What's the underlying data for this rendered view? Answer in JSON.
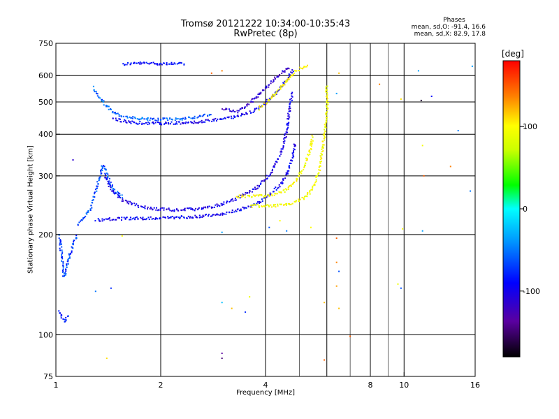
{
  "header": {
    "title_line1": "Tromsø 20121222 10:34:00-10:35:43",
    "title_line2": "RwPretec (8p)"
  },
  "stats": {
    "heading": "Phases",
    "o_mode": "mean, sd,O: -91.4, 16.6",
    "x_mode": "mean, sd,X:  82.9, 17.8"
  },
  "colorbar": {
    "unit": "[deg]",
    "ticks": [
      100,
      0,
      -100
    ],
    "tick_labels": [
      "100",
      "0",
      "-100"
    ],
    "range": [
      -180,
      180
    ]
  },
  "chart_data": {
    "type": "scatter",
    "title": "Tromsø 20121222 10:34:00-10:35:43",
    "subtitle": "RwPretec (8p)",
    "xlabel": "Frequency [MHz]",
    "ylabel": "Stationary phase Virtual Height [km]",
    "xscale": "log",
    "yscale": "log",
    "xlim": [
      1,
      16
    ],
    "ylim": [
      75,
      750
    ],
    "xticks": [
      1,
      2,
      4,
      8,
      10,
      16
    ],
    "xtick_labels": [
      "1",
      "2",
      "4",
      "8",
      "10",
      "16"
    ],
    "xgrid": [
      2,
      4,
      6,
      8,
      10
    ],
    "xminor": [
      5,
      7,
      9
    ],
    "yticks": [
      75,
      100,
      200,
      300,
      400,
      500,
      600,
      750
    ],
    "ytick_labels": [
      "75",
      "100",
      "200",
      "300",
      "400",
      "500",
      "600",
      "750"
    ],
    "ygrid": [
      100,
      200,
      300,
      400,
      500,
      600
    ],
    "grid": true,
    "color_variable": "phase [deg]",
    "traces": [
      {
        "phase": -100,
        "points": [
          [
            1.55,
            652
          ],
          [
            1.62,
            655
          ],
          [
            1.7,
            656
          ],
          [
            1.8,
            656
          ],
          [
            1.9,
            656
          ],
          [
            2.0,
            655
          ],
          [
            2.1,
            655
          ],
          [
            2.2,
            654
          ],
          [
            2.35,
            652
          ]
        ]
      },
      {
        "phase": -75,
        "points": [
          [
            1.28,
            555
          ],
          [
            1.3,
            530
          ],
          [
            1.35,
            505
          ],
          [
            1.4,
            485
          ],
          [
            1.45,
            470
          ],
          [
            1.5,
            460
          ],
          [
            1.6,
            452
          ],
          [
            1.7,
            448
          ],
          [
            1.8,
            446
          ],
          [
            2.0,
            445
          ],
          [
            2.2,
            446
          ],
          [
            2.4,
            450
          ],
          [
            2.6,
            455
          ],
          [
            2.8,
            462
          ]
        ]
      },
      {
        "phase": -105,
        "points": [
          [
            1.45,
            448
          ],
          [
            1.55,
            440
          ],
          [
            1.7,
            435
          ],
          [
            1.9,
            433
          ],
          [
            2.1,
            433
          ],
          [
            2.4,
            435
          ],
          [
            2.7,
            440
          ],
          [
            3.0,
            447
          ],
          [
            3.3,
            455
          ],
          [
            3.6,
            468
          ],
          [
            3.9,
            490
          ],
          [
            4.2,
            525
          ],
          [
            4.4,
            555
          ],
          [
            4.6,
            590
          ],
          [
            4.8,
            630
          ]
        ]
      },
      {
        "phase": -120,
        "points": [
          [
            3.0,
            480
          ],
          [
            3.3,
            470
          ],
          [
            3.6,
            500
          ],
          [
            3.8,
            525
          ],
          [
            4.0,
            555
          ],
          [
            4.2,
            585
          ],
          [
            4.5,
            620
          ],
          [
            4.7,
            640
          ]
        ]
      },
      {
        "phase": 100,
        "points": [
          [
            3.8,
            480
          ],
          [
            4.1,
            510
          ],
          [
            4.3,
            540
          ],
          [
            4.5,
            570
          ],
          [
            4.7,
            600
          ],
          [
            4.9,
            625
          ],
          [
            5.1,
            640
          ],
          [
            5.3,
            645
          ]
        ]
      },
      {
        "phase": -110,
        "points": [
          [
            1.38,
            300
          ],
          [
            1.45,
            270
          ],
          [
            1.55,
            255
          ],
          [
            1.7,
            245
          ],
          [
            1.9,
            240
          ],
          [
            2.2,
            238
          ],
          [
            2.6,
            240
          ],
          [
            3.0,
            248
          ],
          [
            3.4,
            262
          ],
          [
            3.8,
            280
          ],
          [
            4.1,
            305
          ],
          [
            4.35,
            340
          ],
          [
            4.5,
            380
          ],
          [
            4.6,
            420
          ],
          [
            4.65,
            460
          ],
          [
            4.7,
            500
          ],
          [
            4.75,
            540
          ]
        ]
      },
      {
        "phase": -105,
        "points": [
          [
            1.3,
            222
          ],
          [
            1.5,
            224
          ],
          [
            1.8,
            225
          ],
          [
            2.2,
            226
          ],
          [
            2.6,
            228
          ],
          [
            3.0,
            232
          ],
          [
            3.4,
            240
          ],
          [
            3.8,
            250
          ],
          [
            4.1,
            265
          ],
          [
            4.4,
            285
          ],
          [
            4.6,
            310
          ],
          [
            4.75,
            340
          ],
          [
            4.85,
            380
          ]
        ]
      },
      {
        "phase": -80,
        "points": [
          [
            1.15,
            215
          ],
          [
            1.2,
            225
          ],
          [
            1.25,
            240
          ],
          [
            1.3,
            275
          ],
          [
            1.33,
            300
          ],
          [
            1.36,
            325
          ],
          [
            1.4,
            300
          ],
          [
            1.45,
            275
          ],
          [
            1.55,
            260
          ]
        ]
      },
      {
        "phase": 95,
        "points": [
          [
            3.3,
            262
          ],
          [
            3.6,
            262
          ],
          [
            3.9,
            262
          ],
          [
            4.2,
            265
          ],
          [
            4.5,
            272
          ],
          [
            4.8,
            285
          ],
          [
            5.0,
            305
          ],
          [
            5.2,
            330
          ],
          [
            5.35,
            360
          ],
          [
            5.45,
            400
          ]
        ]
      },
      {
        "phase": 95,
        "points": [
          [
            3.6,
            245
          ],
          [
            4.0,
            245
          ],
          [
            4.4,
            246
          ],
          [
            4.8,
            250
          ],
          [
            5.1,
            258
          ],
          [
            5.35,
            270
          ],
          [
            5.55,
            290
          ],
          [
            5.7,
            320
          ],
          [
            5.8,
            360
          ],
          [
            5.88,
            400
          ],
          [
            5.95,
            450
          ],
          [
            6.0,
            500
          ],
          [
            5.95,
            560
          ]
        ]
      },
      {
        "phase": -85,
        "points": [
          [
            1.02,
            200
          ],
          [
            1.03,
            180
          ],
          [
            1.04,
            165
          ],
          [
            1.05,
            150
          ],
          [
            1.07,
            160
          ],
          [
            1.09,
            175
          ],
          [
            1.12,
            190
          ],
          [
            1.15,
            200
          ]
        ]
      },
      {
        "phase": -95,
        "points": [
          [
            1.02,
            118
          ],
          [
            1.04,
            112
          ],
          [
            1.06,
            110
          ],
          [
            1.08,
            115
          ]
        ]
      }
    ],
    "scatter_points": [
      {
        "x": 3.6,
        "y": 130,
        "phase": 90
      },
      {
        "x": 3.0,
        "y": 125,
        "phase": -40
      },
      {
        "x": 3.2,
        "y": 120,
        "phase": 120
      },
      {
        "x": 3.5,
        "y": 117,
        "phase": -90
      },
      {
        "x": 3.0,
        "y": 88,
        "phase": -140
      },
      {
        "x": 3.0,
        "y": 85,
        "phase": -150
      },
      {
        "x": 1.4,
        "y": 85,
        "phase": 110
      },
      {
        "x": 5.9,
        "y": 84,
        "phase": 150
      },
      {
        "x": 6.4,
        "y": 195,
        "phase": 150
      },
      {
        "x": 6.4,
        "y": 165,
        "phase": 140
      },
      {
        "x": 6.5,
        "y": 155,
        "phase": -80
      },
      {
        "x": 6.4,
        "y": 140,
        "phase": 130
      },
      {
        "x": 6.5,
        "y": 120,
        "phase": 120
      },
      {
        "x": 7.0,
        "y": 99,
        "phase": 150
      },
      {
        "x": 6.5,
        "y": 610,
        "phase": 120
      },
      {
        "x": 6.4,
        "y": 530,
        "phase": -60
      },
      {
        "x": 8.5,
        "y": 565,
        "phase": 140
      },
      {
        "x": 9.8,
        "y": 510,
        "phase": 110
      },
      {
        "x": 11.2,
        "y": 505,
        "phase": -170
      },
      {
        "x": 12.0,
        "y": 520,
        "phase": -100
      },
      {
        "x": 11.0,
        "y": 620,
        "phase": -60
      },
      {
        "x": 14.3,
        "y": 410,
        "phase": -70
      },
      {
        "x": 11.3,
        "y": 370,
        "phase": 95
      },
      {
        "x": 13.6,
        "y": 320,
        "phase": 140
      },
      {
        "x": 11.4,
        "y": 300,
        "phase": 150
      },
      {
        "x": 15.5,
        "y": 270,
        "phase": -70
      },
      {
        "x": 15.7,
        "y": 640,
        "phase": -60
      },
      {
        "x": 11.3,
        "y": 205,
        "phase": -60
      },
      {
        "x": 9.9,
        "y": 208,
        "phase": 95
      },
      {
        "x": 9.8,
        "y": 138,
        "phase": -80
      },
      {
        "x": 9.6,
        "y": 142,
        "phase": 90
      },
      {
        "x": 1.44,
        "y": 138,
        "phase": -90
      },
      {
        "x": 1.3,
        "y": 135,
        "phase": -70
      },
      {
        "x": 1.55,
        "y": 198,
        "phase": 100
      },
      {
        "x": 1.12,
        "y": 335,
        "phase": -120
      },
      {
        "x": 2.8,
        "y": 610,
        "phase": 150
      },
      {
        "x": 3.0,
        "y": 620,
        "phase": 140
      },
      {
        "x": 4.1,
        "y": 210,
        "phase": -80
      },
      {
        "x": 4.6,
        "y": 205,
        "phase": -70
      },
      {
        "x": 3.0,
        "y": 203,
        "phase": -60
      },
      {
        "x": 5.4,
        "y": 210,
        "phase": 100
      },
      {
        "x": 4.4,
        "y": 220,
        "phase": 100
      },
      {
        "x": 5.9,
        "y": 125,
        "phase": 120
      }
    ]
  }
}
